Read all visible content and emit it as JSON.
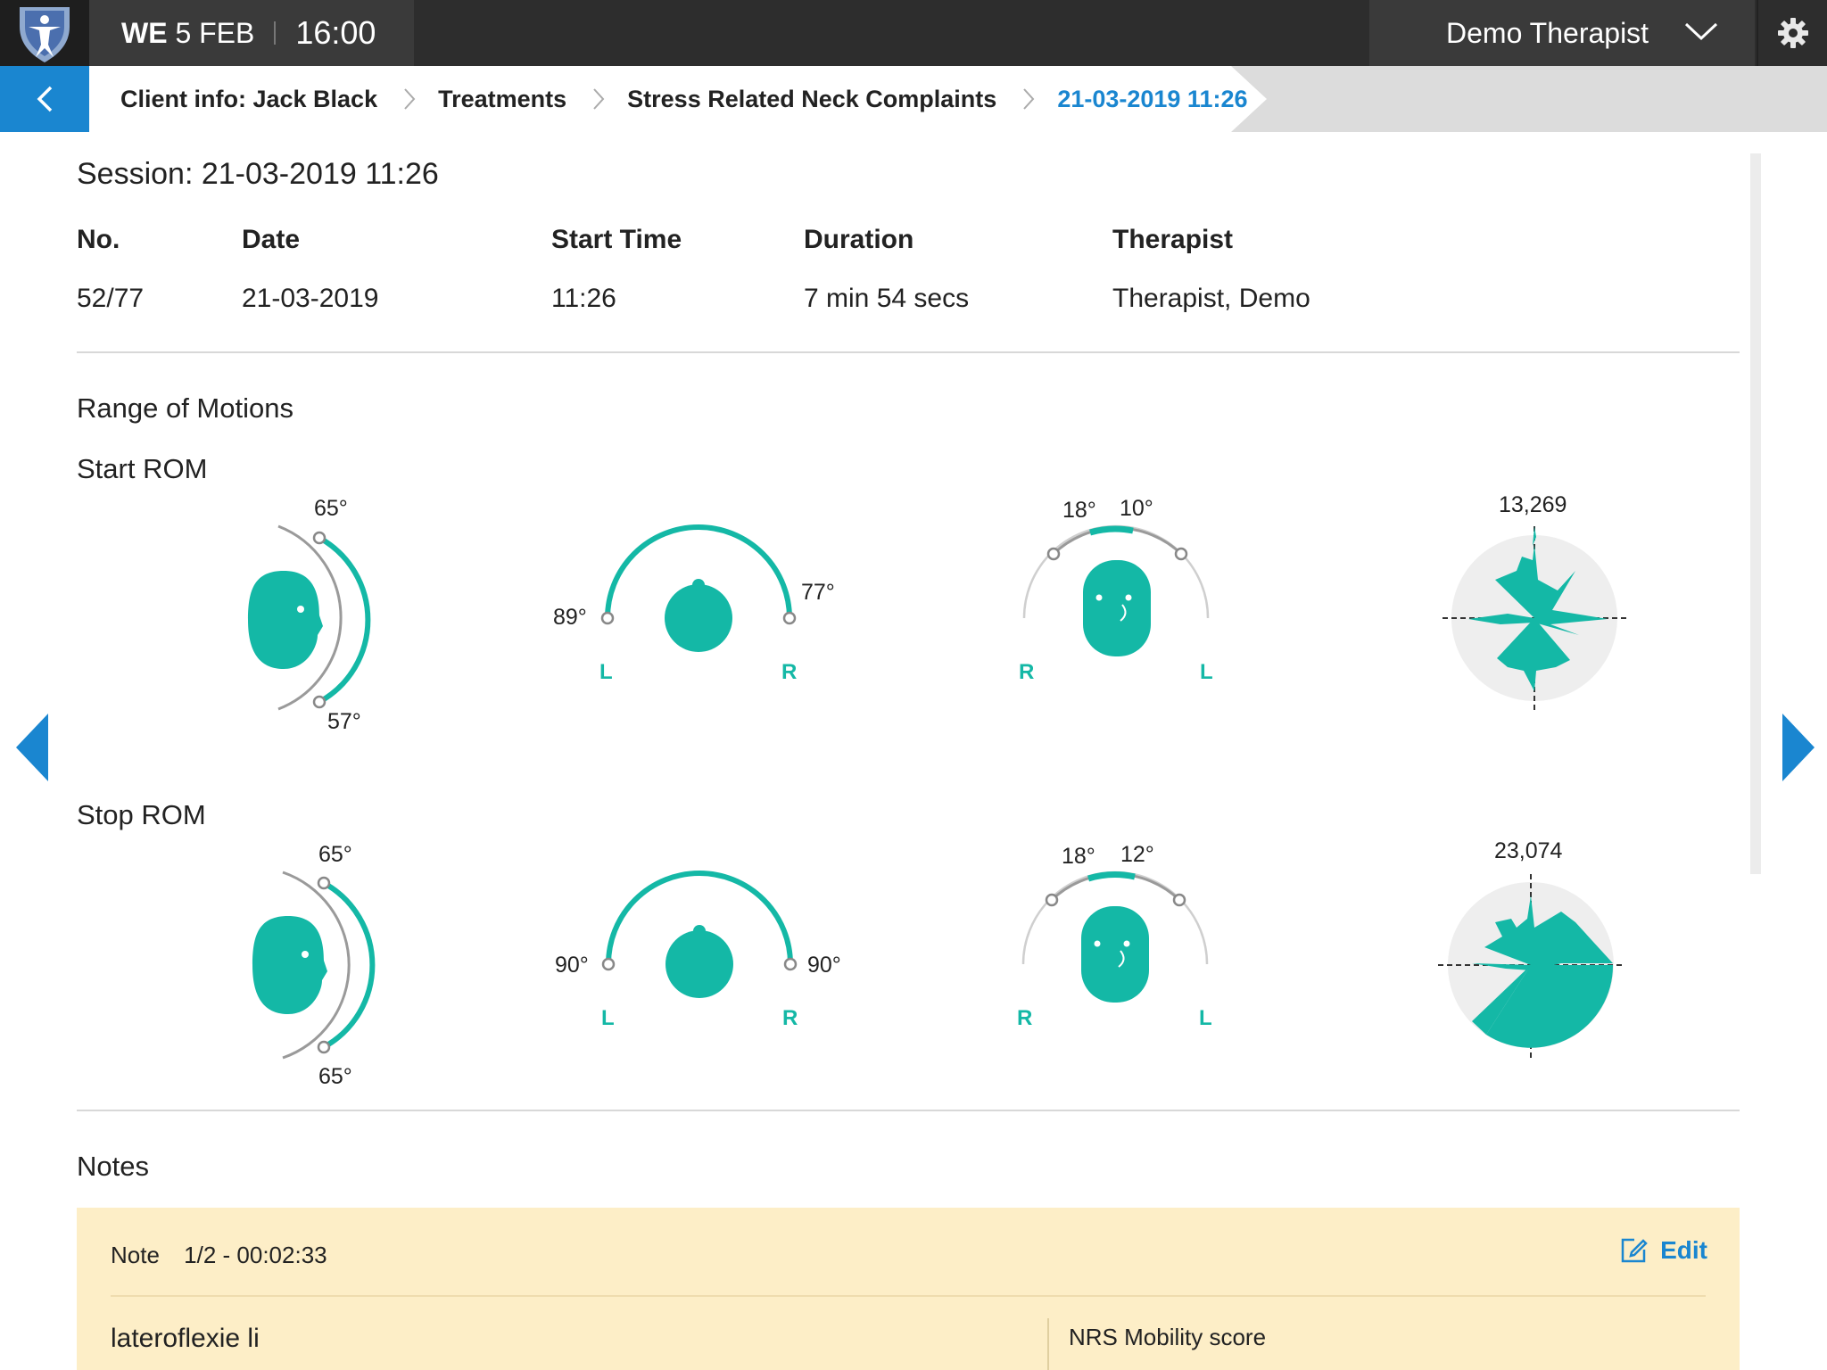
{
  "header": {
    "weekday": "WE",
    "date": "5 FEB",
    "time": "16:00",
    "user": "Demo Therapist"
  },
  "breadcrumb": {
    "items": [
      "Client info: Jack Black",
      "Treatments",
      "Stress Related Neck Complaints"
    ],
    "active": "21-03-2019 11:26"
  },
  "session": {
    "title": "Session: 21-03-2019 11:26",
    "headers": {
      "no": "No.",
      "date": "Date",
      "start": "Start Time",
      "duration": "Duration",
      "therapist": "Therapist"
    },
    "values": {
      "no": "52/77",
      "date": "21-03-2019",
      "start": "11:26",
      "duration": "7 min 54 secs",
      "therapist": "Therapist, Demo"
    }
  },
  "rom": {
    "section_title": "Range of Motions",
    "side_left": "L",
    "side_right": "R",
    "start": {
      "label": "Start ROM",
      "flexion_top": "65°",
      "flexion_bottom": "57°",
      "rotation_left": "89°",
      "rotation_right": "77°",
      "lateral_right": "18°",
      "lateral_left": "10°",
      "total": "13,269"
    },
    "stop": {
      "label": "Stop ROM",
      "flexion_top": "65°",
      "flexion_bottom": "65°",
      "rotation_left": "90°",
      "rotation_right": "90°",
      "lateral_right": "18°",
      "lateral_left": "12°",
      "total": "23,074"
    }
  },
  "notes": {
    "section_title": "Notes",
    "note_label": "Note",
    "note_meta": "1/2 - 00:02:33",
    "edit_label": "Edit",
    "note_text": "lateroflexie li",
    "score_label": "NRS Mobility score"
  },
  "colors": {
    "accent": "#14b8a6",
    "brand_blue": "#1a86d0",
    "topbar": "#2d2d2d",
    "note_bg": "#fdeec7"
  },
  "icons": [
    "logo-icon",
    "chevron-down-icon",
    "gear-icon",
    "back-arrow-icon",
    "chevron-right-icon",
    "edit-icon",
    "prev-arrow-icon",
    "next-arrow-icon"
  ]
}
